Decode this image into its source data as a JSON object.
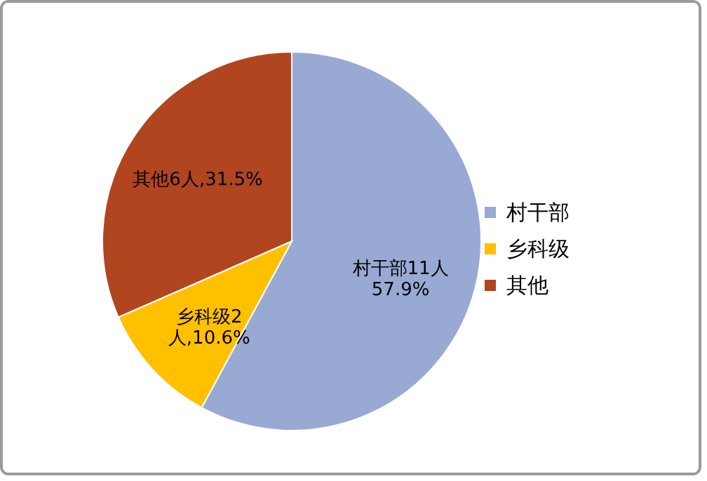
{
  "chart_data": {
    "type": "pie",
    "categories": [
      "村干部",
      "乡科级",
      "其他"
    ],
    "values": [
      11,
      2,
      6
    ],
    "colors": [
      "#98a9d3",
      "#ffc000",
      "#b0451f"
    ],
    "value_labels": [
      "村干部11人\n57.9%",
      "乡科级2\n人,10.6%",
      "其他6人,31.5%"
    ],
    "legend": "right"
  }
}
